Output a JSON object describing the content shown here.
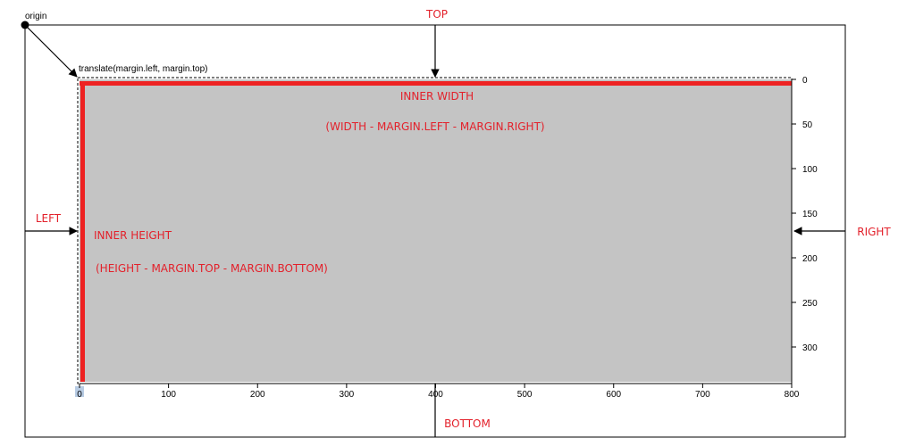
{
  "colors": {
    "inner_fill": "#c4c4c4",
    "inner_edge": "#ee2222",
    "label_red": "#e3212b",
    "line": "#000000",
    "selection_highlight": "#b8cce4"
  },
  "labels": {
    "origin": "origin",
    "translate": "translate(margin.left, margin.top)",
    "top": "TOP",
    "left": "LEFT",
    "right": "RIGHT",
    "bottom": "BOTTOM",
    "inner_width": "INNER WIDTH",
    "inner_width_formula": "(WIDTH - MARGIN.LEFT - MARGIN.RIGHT)",
    "inner_height": "INNER HEIGHT",
    "inner_height_formula": "(HEIGHT - MARGIN.TOP - MARGIN.BOTTOM)"
  },
  "x_axis": {
    "ticks": [
      "0",
      "100",
      "200",
      "300",
      "400",
      "500",
      "600",
      "700",
      "800"
    ]
  },
  "y_axis": {
    "ticks": [
      "0",
      "50",
      "100",
      "150",
      "200",
      "250",
      "300"
    ]
  }
}
